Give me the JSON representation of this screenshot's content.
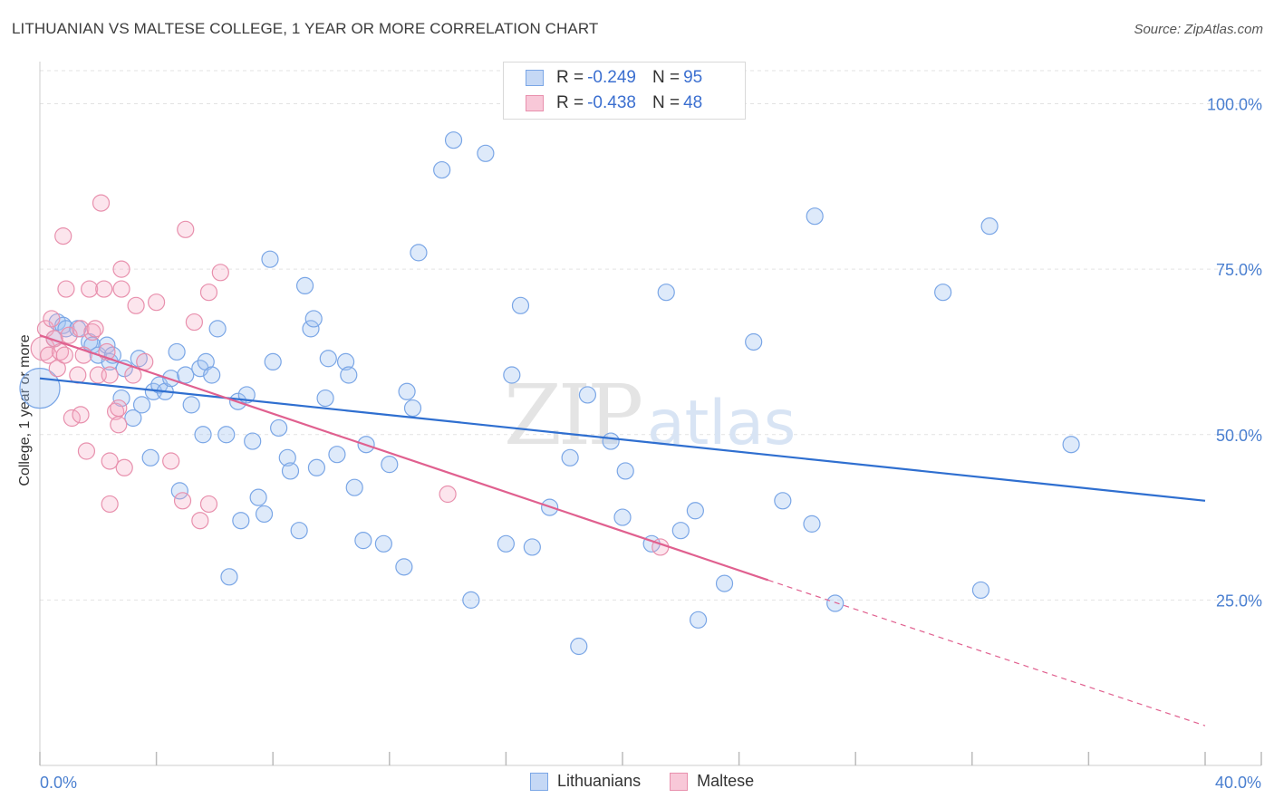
{
  "header": {
    "title": "LITHUANIAN VS MALTESE COLLEGE, 1 YEAR OR MORE CORRELATION CHART",
    "source": "Source: ZipAtlas.com"
  },
  "watermark": {
    "zip": "ZIP",
    "atlas": "atlas"
  },
  "legend": {
    "rows": [
      {
        "r_label": "R =",
        "r_value": "-0.249",
        "n_label": "N =",
        "n_value": "95",
        "color": "#7aa6e6",
        "fill": "#c5d8f5"
      },
      {
        "r_label": "R =",
        "r_value": "-0.438",
        "n_label": "N =",
        "n_value": "48",
        "color": "#e890ad",
        "fill": "#f8c8d8"
      }
    ]
  },
  "bottom_legend": [
    "Lithuanians",
    "Maltese"
  ],
  "colors": {
    "blue_stroke": "#7aa6e6",
    "blue_fill": "rgba(160,195,240,0.35)",
    "blue_line": "#2f6fd0",
    "pink_stroke": "#e890ad",
    "pink_fill": "rgba(245,170,195,0.30)",
    "pink_line": "#e0608f",
    "grid": "#e3e3e3",
    "axis_text": "#4a7fd0"
  },
  "chart_data": {
    "type": "scatter",
    "title": "LITHUANIAN VS MALTESE COLLEGE, 1 YEAR OR MORE CORRELATION CHART",
    "xlabel": "",
    "ylabel": "College, 1 year or more",
    "xlim": [
      0,
      40
    ],
    "ylim": [
      0,
      105
    ],
    "x_tick_labels": [
      "0.0%",
      "40.0%"
    ],
    "y_ticks": [
      25,
      50,
      75,
      100
    ],
    "y_tick_labels": [
      "25.0%",
      "50.0%",
      "75.0%",
      "100.0%"
    ],
    "grid": true,
    "series": [
      {
        "name": "Lithuanians",
        "r": -0.249,
        "n": 95,
        "trend": {
          "x0": 0,
          "y0": 58.5,
          "x1": 40,
          "y1": 40.0
        },
        "points": [
          [
            0.0,
            57.0,
            3
          ],
          [
            0.5,
            64.5,
            1
          ],
          [
            0.6,
            67.0,
            1
          ],
          [
            0.8,
            66.5,
            1
          ],
          [
            0.9,
            66.0,
            1
          ],
          [
            1.3,
            66.0,
            1
          ],
          [
            1.7,
            64.0,
            1
          ],
          [
            1.8,
            63.5,
            1
          ],
          [
            2.0,
            62.0,
            1
          ],
          [
            2.3,
            63.5,
            1
          ],
          [
            2.4,
            61.0,
            1
          ],
          [
            2.5,
            62.0,
            1
          ],
          [
            2.8,
            55.5,
            1
          ],
          [
            2.9,
            60.0,
            1
          ],
          [
            3.2,
            52.5,
            1
          ],
          [
            3.4,
            61.5,
            1
          ],
          [
            3.5,
            54.5,
            1
          ],
          [
            3.8,
            46.5,
            1
          ],
          [
            3.9,
            56.5,
            1
          ],
          [
            4.1,
            57.5,
            1
          ],
          [
            4.3,
            56.5,
            1
          ],
          [
            4.5,
            58.5,
            1
          ],
          [
            4.7,
            62.5,
            1
          ],
          [
            4.8,
            41.5,
            1
          ],
          [
            5.0,
            59.0,
            1
          ],
          [
            5.2,
            54.5,
            1
          ],
          [
            5.5,
            60.0,
            1
          ],
          [
            5.6,
            50.0,
            1
          ],
          [
            5.7,
            61.0,
            1
          ],
          [
            5.9,
            59.0,
            1
          ],
          [
            6.1,
            66.0,
            1
          ],
          [
            6.4,
            50.0,
            1
          ],
          [
            6.5,
            28.5,
            1
          ],
          [
            6.8,
            55.0,
            1
          ],
          [
            6.9,
            37.0,
            1
          ],
          [
            7.1,
            56.0,
            1
          ],
          [
            7.3,
            49.0,
            1
          ],
          [
            7.5,
            40.5,
            1
          ],
          [
            7.7,
            38.0,
            1
          ],
          [
            7.9,
            76.5,
            1
          ],
          [
            8.0,
            61.0,
            1
          ],
          [
            8.2,
            51.0,
            1
          ],
          [
            8.5,
            46.5,
            1
          ],
          [
            8.6,
            44.5,
            1
          ],
          [
            8.9,
            35.5,
            1
          ],
          [
            9.1,
            72.5,
            1
          ],
          [
            9.3,
            66.0,
            1
          ],
          [
            9.4,
            67.5,
            1
          ],
          [
            9.5,
            45.0,
            1
          ],
          [
            9.8,
            55.5,
            1
          ],
          [
            9.9,
            61.5,
            1
          ],
          [
            10.2,
            47.0,
            1
          ],
          [
            10.5,
            61.0,
            1
          ],
          [
            10.6,
            59.0,
            1
          ],
          [
            10.8,
            42.0,
            1
          ],
          [
            11.1,
            34.0,
            1
          ],
          [
            11.2,
            48.5,
            1
          ],
          [
            11.8,
            33.5,
            1
          ],
          [
            12.0,
            45.5,
            1
          ],
          [
            12.5,
            30.0,
            1
          ],
          [
            12.6,
            56.5,
            1
          ],
          [
            12.8,
            54.0,
            1
          ],
          [
            13.0,
            77.5,
            1
          ],
          [
            13.8,
            90.0,
            1
          ],
          [
            14.2,
            94.5,
            1
          ],
          [
            14.8,
            25.0,
            1
          ],
          [
            15.3,
            92.5,
            1
          ],
          [
            16.0,
            33.5,
            1
          ],
          [
            16.2,
            59.0,
            1
          ],
          [
            16.5,
            69.5,
            1
          ],
          [
            16.9,
            33.0,
            1
          ],
          [
            17.5,
            39.0,
            1
          ],
          [
            18.2,
            46.5,
            1
          ],
          [
            18.5,
            18.0,
            1
          ],
          [
            18.8,
            56.0,
            1
          ],
          [
            19.6,
            49.0,
            1
          ],
          [
            20.0,
            37.5,
            1
          ],
          [
            20.1,
            44.5,
            1
          ],
          [
            21.0,
            33.5,
            1
          ],
          [
            21.5,
            71.5,
            1
          ],
          [
            22.0,
            35.5,
            1
          ],
          [
            22.5,
            38.5,
            1
          ],
          [
            22.6,
            22.0,
            1
          ],
          [
            23.5,
            27.5,
            1
          ],
          [
            24.5,
            64.0,
            1
          ],
          [
            25.5,
            40.0,
            1
          ],
          [
            26.5,
            36.5,
            1
          ],
          [
            26.6,
            83.0,
            1
          ],
          [
            27.3,
            24.5,
            1
          ],
          [
            31.0,
            71.5,
            1
          ],
          [
            32.3,
            26.5,
            1
          ],
          [
            32.6,
            81.5,
            1
          ],
          [
            35.4,
            48.5,
            1
          ]
        ]
      },
      {
        "name": "Maltese",
        "r": -0.438,
        "n": 48,
        "trend": {
          "x0": 0,
          "y0": 65.0,
          "x1": 25,
          "y1": 28.0,
          "dashed_to": {
            "x": 40,
            "y": 6.0
          }
        },
        "points": [
          [
            0.1,
            63.0,
            2
          ],
          [
            0.2,
            66.0,
            1
          ],
          [
            0.3,
            62.0,
            1
          ],
          [
            0.4,
            67.5,
            1
          ],
          [
            0.5,
            64.5,
            1
          ],
          [
            0.6,
            60.0,
            1
          ],
          [
            0.7,
            62.5,
            1
          ],
          [
            0.8,
            80.0,
            1
          ],
          [
            0.85,
            62.0,
            1
          ],
          [
            0.9,
            72.0,
            1
          ],
          [
            1.0,
            65.0,
            1
          ],
          [
            1.1,
            52.5,
            1
          ],
          [
            1.3,
            59.0,
            1
          ],
          [
            1.4,
            66.0,
            1
          ],
          [
            1.4,
            53.0,
            1
          ],
          [
            1.5,
            62.0,
            1
          ],
          [
            1.6,
            47.5,
            1
          ],
          [
            1.7,
            72.0,
            1
          ],
          [
            1.8,
            65.5,
            1
          ],
          [
            1.9,
            66.0,
            1
          ],
          [
            2.0,
            59.0,
            1
          ],
          [
            2.1,
            85.0,
            1
          ],
          [
            2.2,
            72.0,
            1
          ],
          [
            2.3,
            62.5,
            1
          ],
          [
            2.4,
            59.0,
            1
          ],
          [
            2.4,
            46.0,
            1
          ],
          [
            2.4,
            39.5,
            1
          ],
          [
            2.6,
            53.5,
            1
          ],
          [
            2.7,
            54.0,
            1
          ],
          [
            2.7,
            51.5,
            1
          ],
          [
            2.8,
            75.0,
            1
          ],
          [
            2.8,
            72.0,
            1
          ],
          [
            2.9,
            45.0,
            1
          ],
          [
            3.2,
            59.0,
            1
          ],
          [
            3.3,
            69.5,
            1
          ],
          [
            3.6,
            61.0,
            1
          ],
          [
            4.0,
            70.0,
            1
          ],
          [
            4.5,
            46.0,
            1
          ],
          [
            4.9,
            40.0,
            1
          ],
          [
            5.0,
            81.0,
            1
          ],
          [
            5.3,
            67.0,
            1
          ],
          [
            5.5,
            37.0,
            1
          ],
          [
            5.8,
            71.5,
            1
          ],
          [
            5.8,
            39.5,
            1
          ],
          [
            6.2,
            74.5,
            1
          ],
          [
            14.0,
            41.0,
            1
          ],
          [
            21.3,
            33.0,
            1
          ]
        ]
      }
    ]
  }
}
